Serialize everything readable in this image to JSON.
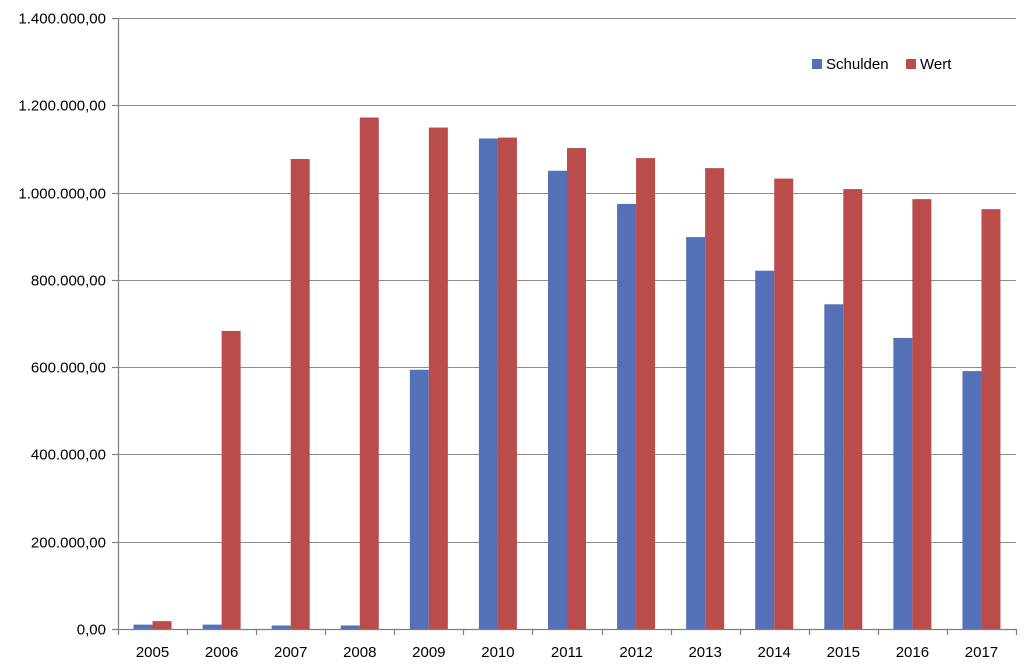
{
  "chart_data": {
    "type": "bar",
    "title": "",
    "xlabel": "",
    "ylabel": "",
    "categories": [
      "2005",
      "2006",
      "2007",
      "2008",
      "2009",
      "2010",
      "2011",
      "2012",
      "2013",
      "2014",
      "2015",
      "2016",
      "2017"
    ],
    "series": [
      {
        "name": "Schulden",
        "color": "#5470b7",
        "values": [
          10000,
          10000,
          8000,
          8000,
          594000,
          1124000,
          1050000,
          974000,
          898000,
          821000,
          744000,
          667000,
          591000
        ]
      },
      {
        "name": "Wert",
        "color": "#bb4c4c",
        "values": [
          18000,
          683000,
          1077000,
          1172000,
          1149000,
          1126000,
          1102000,
          1079000,
          1056000,
          1032000,
          1008000,
          985000,
          962000
        ]
      }
    ],
    "ylim": [
      0,
      1400000
    ],
    "y_ticks": [
      {
        "value": 0,
        "label": "0,00"
      },
      {
        "value": 200000,
        "label": "200.000,00"
      },
      {
        "value": 400000,
        "label": "400.000,00"
      },
      {
        "value": 600000,
        "label": "600.000,00"
      },
      {
        "value": 800000,
        "label": "800.000,00"
      },
      {
        "value": 1000000,
        "label": "1.000.000,00"
      },
      {
        "value": 1200000,
        "label": "1.200.000,00"
      },
      {
        "value": 1400000,
        "label": "1.400.000,00"
      }
    ],
    "grid": true,
    "legend_position": "top-right"
  }
}
